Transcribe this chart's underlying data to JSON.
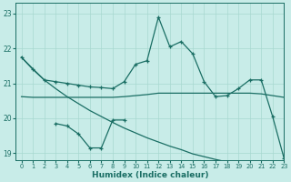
{
  "xlabel": "Humidex (Indice chaleur)",
  "background_color": "#c8ece8",
  "grid_color": "#a8d8d0",
  "line_color": "#1a6e64",
  "xlim": [
    -0.5,
    23
  ],
  "ylim": [
    18.8,
    23.3
  ],
  "yticks": [
    19,
    20,
    21,
    22,
    23
  ],
  "xticks": [
    0,
    1,
    2,
    3,
    4,
    5,
    6,
    7,
    8,
    9,
    10,
    11,
    12,
    13,
    14,
    15,
    16,
    17,
    18,
    19,
    20,
    21,
    22,
    23
  ],
  "line_diag_x": [
    0,
    1,
    2,
    3,
    4,
    5,
    6,
    7,
    8,
    9,
    10,
    11,
    12,
    13,
    14,
    15,
    16,
    17,
    18,
    19,
    20,
    21,
    22,
    23
  ],
  "line_diag_y": [
    21.75,
    21.4,
    21.1,
    20.85,
    20.62,
    20.42,
    20.22,
    20.05,
    19.88,
    19.72,
    19.58,
    19.44,
    19.32,
    19.2,
    19.1,
    18.98,
    18.9,
    18.82,
    18.75,
    18.7,
    18.65,
    18.6,
    18.55,
    18.52
  ],
  "line_flat_x": [
    0,
    1,
    2,
    3,
    4,
    5,
    6,
    7,
    8,
    9,
    10,
    11,
    12,
    13,
    14,
    15,
    16,
    17,
    18,
    19,
    20,
    21,
    22,
    23
  ],
  "line_flat_y": [
    20.62,
    20.6,
    20.6,
    20.6,
    20.6,
    20.6,
    20.6,
    20.6,
    20.6,
    20.62,
    20.65,
    20.68,
    20.72,
    20.72,
    20.72,
    20.72,
    20.72,
    20.72,
    20.72,
    20.72,
    20.72,
    20.7,
    20.65,
    20.6
  ],
  "line_upper_x": [
    0,
    1,
    2,
    3,
    4,
    5,
    6,
    7,
    8,
    9,
    10,
    11,
    12,
    13,
    14,
    15,
    16,
    17,
    18,
    19,
    20,
    21,
    22,
    23
  ],
  "line_upper_y": [
    21.75,
    21.42,
    21.1,
    21.05,
    21.0,
    20.95,
    20.9,
    20.88,
    20.85,
    21.05,
    21.55,
    21.65,
    22.9,
    22.05,
    22.2,
    21.85,
    21.05,
    20.62,
    20.65,
    20.85,
    21.1,
    21.1,
    20.05,
    18.85
  ],
  "line_lower_x": [
    3,
    4,
    5,
    6,
    7,
    8,
    9
  ],
  "line_lower_y": [
    19.85,
    19.78,
    19.55,
    19.15,
    19.15,
    19.95,
    19.95
  ],
  "marker": "+"
}
